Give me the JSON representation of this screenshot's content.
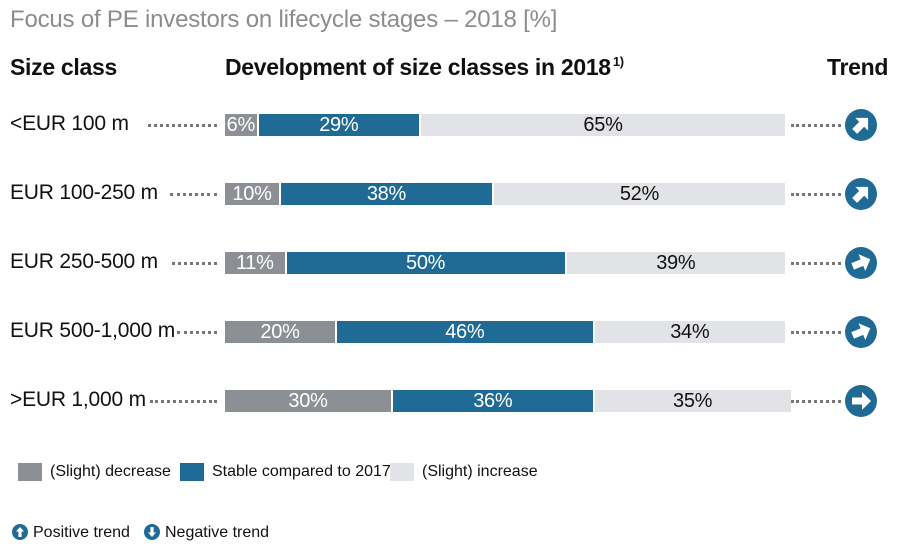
{
  "chart_data": {
    "type": "bar",
    "stacked": true,
    "orientation": "horizontal",
    "title": "Focus of PE investors on lifecycle stages – 2018 [%]",
    "headers": {
      "size_class": "Size class",
      "development": "Development of size classes in 2018",
      "development_footnote": "1)",
      "trend": "Trend"
    },
    "categories": [
      "<EUR 100 m",
      "EUR 100-250 m",
      "EUR 250-500 m",
      "EUR 500-1,000 m",
      ">EUR 1,000 m"
    ],
    "series": [
      {
        "name": "(Slight) decrease",
        "color": "#8c8f93",
        "values": [
          6,
          10,
          11,
          20,
          30
        ],
        "labels": [
          "6%",
          "10%",
          "11%",
          "20%",
          "30%"
        ]
      },
      {
        "name": "Stable compared to 2017",
        "color": "#1f6b96",
        "values": [
          29,
          38,
          50,
          46,
          36
        ],
        "labels": [
          "29%",
          "38%",
          "50%",
          "46%",
          "36%"
        ]
      },
      {
        "name": "(Slight) increase",
        "color": "#e1e3e6",
        "values": [
          65,
          52,
          39,
          34,
          35
        ],
        "labels": [
          "65%",
          "52%",
          "39%",
          "34%",
          "35%"
        ]
      }
    ],
    "trend_angles_deg": [
      45,
      45,
      22,
      22,
      0
    ],
    "xlim": [
      0,
      100
    ]
  },
  "legend_trend": {
    "positive": "Positive trend",
    "negative": "Negative trend"
  },
  "colors": {
    "decrease": "#8c8f93",
    "stable": "#1f6b96",
    "increase": "#e1e3e6",
    "trend_icon": "#1f6b96"
  }
}
